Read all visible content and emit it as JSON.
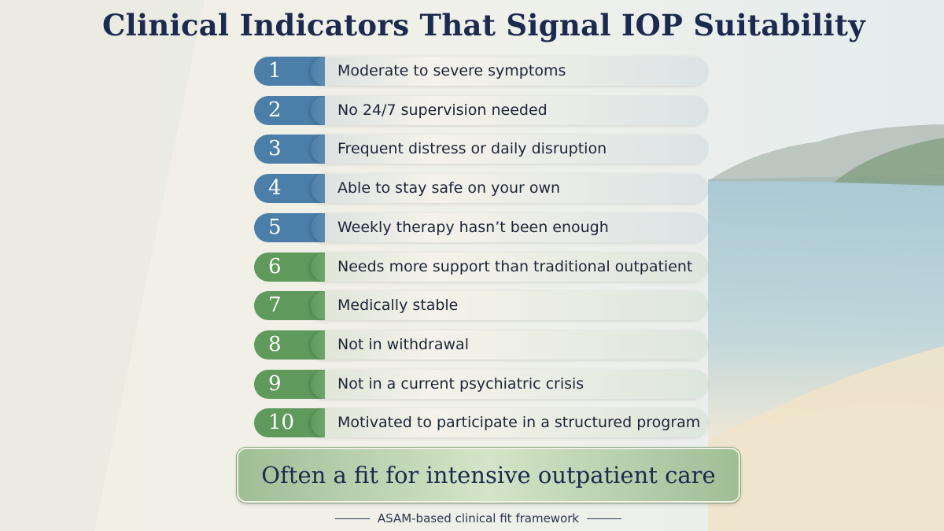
{
  "title": "Clinical Indicators That Signal IOP Suitability",
  "items": [
    {
      "number": "1",
      "text": "Moderate to severe symptoms",
      "color": "#4b7fa9"
    },
    {
      "number": "2",
      "text": "No 24/7 supervision needed",
      "color": "#4b7fa9"
    },
    {
      "number": "3",
      "text": "Frequent distress or daily disruption",
      "color": "#4b7fa9"
    },
    {
      "number": "4",
      "text": "Able to stay safe on your own",
      "color": "#4b7fa9"
    },
    {
      "number": "5",
      "text": "Weekly therapy hasn’t been enough",
      "color": "#4b7fa9"
    },
    {
      "number": "6",
      "text": "Needs more support than traditional outpatient",
      "color": "#5f9a5c"
    },
    {
      "number": "7",
      "text": "Medically stable",
      "color": "#5f9a5c"
    },
    {
      "number": "8",
      "text": "Not in withdrawal",
      "color": "#5f9a5c"
    },
    {
      "number": "9",
      "text": "Not in a current psychiatric crisis",
      "color": "#5f9a5c"
    },
    {
      "number": "10",
      "text": "Motivated to participate in a structured program",
      "color": "#5f9a5c"
    }
  ],
  "conclusion": "Often a fit for intensive outpatient care",
  "footer": "ASAM-based clinical fit framework"
}
